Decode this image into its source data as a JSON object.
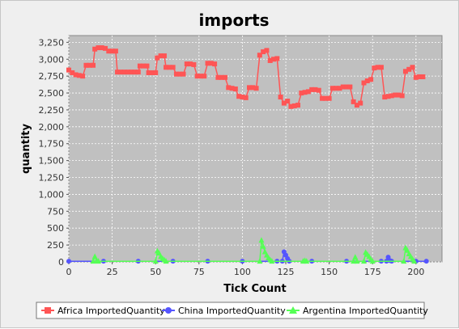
{
  "chart_data": {
    "type": "line",
    "title": "imports",
    "xlabel": "Tick Count",
    "ylabel": "quantity",
    "xlim": [
      0,
      215
    ],
    "ylim": [
      0,
      3350
    ],
    "xticks": [
      0,
      25,
      50,
      75,
      100,
      125,
      150,
      175,
      200
    ],
    "yticks": [
      0,
      250,
      500,
      750,
      1000,
      1250,
      1500,
      1750,
      2000,
      2250,
      2500,
      2750,
      3000,
      3250
    ],
    "grid": true,
    "legend_position": "bottom",
    "background": "#c0c0c0",
    "series": [
      {
        "name": "Africa ImportedQuantity",
        "color": "#ff5555",
        "marker": "square",
        "points": [
          [
            0,
            2840
          ],
          [
            2,
            2800
          ],
          [
            4,
            2770
          ],
          [
            6,
            2760
          ],
          [
            8,
            2750
          ],
          [
            10,
            2910
          ],
          [
            12,
            2910
          ],
          [
            14,
            2910
          ],
          [
            15,
            3150
          ],
          [
            17,
            3170
          ],
          [
            19,
            3170
          ],
          [
            21,
            3160
          ],
          [
            23,
            3120
          ],
          [
            25,
            3120
          ],
          [
            27,
            3120
          ],
          [
            28,
            2810
          ],
          [
            30,
            2810
          ],
          [
            32,
            2810
          ],
          [
            34,
            2810
          ],
          [
            36,
            2810
          ],
          [
            38,
            2810
          ],
          [
            40,
            2810
          ],
          [
            41,
            2900
          ],
          [
            43,
            2900
          ],
          [
            45,
            2900
          ],
          [
            46,
            2800
          ],
          [
            48,
            2800
          ],
          [
            50,
            2800
          ],
          [
            51,
            3020
          ],
          [
            53,
            3050
          ],
          [
            55,
            3050
          ],
          [
            56,
            2880
          ],
          [
            58,
            2880
          ],
          [
            60,
            2880
          ],
          [
            62,
            2780
          ],
          [
            64,
            2780
          ],
          [
            66,
            2780
          ],
          [
            68,
            2930
          ],
          [
            70,
            2930
          ],
          [
            72,
            2920
          ],
          [
            74,
            2750
          ],
          [
            76,
            2750
          ],
          [
            78,
            2750
          ],
          [
            80,
            2940
          ],
          [
            82,
            2940
          ],
          [
            84,
            2930
          ],
          [
            86,
            2730
          ],
          [
            88,
            2730
          ],
          [
            90,
            2730
          ],
          [
            92,
            2580
          ],
          [
            94,
            2570
          ],
          [
            96,
            2560
          ],
          [
            98,
            2450
          ],
          [
            100,
            2440
          ],
          [
            102,
            2430
          ],
          [
            104,
            2580
          ],
          [
            106,
            2580
          ],
          [
            108,
            2570
          ],
          [
            110,
            3060
          ],
          [
            112,
            3110
          ],
          [
            114,
            3130
          ],
          [
            116,
            2980
          ],
          [
            118,
            3000
          ],
          [
            120,
            3010
          ],
          [
            122,
            2440
          ],
          [
            124,
            2350
          ],
          [
            126,
            2380
          ],
          [
            128,
            2300
          ],
          [
            130,
            2310
          ],
          [
            132,
            2320
          ],
          [
            134,
            2500
          ],
          [
            136,
            2510
          ],
          [
            138,
            2520
          ],
          [
            140,
            2550
          ],
          [
            142,
            2550
          ],
          [
            144,
            2540
          ],
          [
            146,
            2420
          ],
          [
            148,
            2420
          ],
          [
            150,
            2420
          ],
          [
            152,
            2570
          ],
          [
            154,
            2570
          ],
          [
            156,
            2570
          ],
          [
            158,
            2590
          ],
          [
            160,
            2590
          ],
          [
            162,
            2590
          ],
          [
            164,
            2370
          ],
          [
            166,
            2320
          ],
          [
            168,
            2350
          ],
          [
            170,
            2650
          ],
          [
            172,
            2680
          ],
          [
            174,
            2700
          ],
          [
            176,
            2870
          ],
          [
            178,
            2880
          ],
          [
            180,
            2880
          ],
          [
            182,
            2440
          ],
          [
            184,
            2450
          ],
          [
            186,
            2460
          ],
          [
            188,
            2470
          ],
          [
            190,
            2470
          ],
          [
            192,
            2460
          ],
          [
            194,
            2820
          ],
          [
            196,
            2850
          ],
          [
            198,
            2880
          ],
          [
            200,
            2730
          ],
          [
            202,
            2740
          ],
          [
            204,
            2740
          ]
        ]
      },
      {
        "name": "China ImportedQuantity",
        "color": "#5555ff",
        "marker": "circle",
        "points": [
          [
            0,
            10
          ],
          [
            20,
            10
          ],
          [
            40,
            10
          ],
          [
            60,
            10
          ],
          [
            80,
            10
          ],
          [
            100,
            10
          ],
          [
            120,
            10
          ],
          [
            123,
            10
          ],
          [
            124,
            150
          ],
          [
            125,
            100
          ],
          [
            126,
            50
          ],
          [
            127,
            10
          ],
          [
            140,
            10
          ],
          [
            160,
            10
          ],
          [
            180,
            10
          ],
          [
            183,
            10
          ],
          [
            184,
            70
          ],
          [
            185,
            20
          ],
          [
            186,
            10
          ],
          [
            200,
            10
          ],
          [
            206,
            10
          ]
        ]
      },
      {
        "name": "Argentina ImportedQuantity",
        "color": "#55ff55",
        "marker": "triangle",
        "points": [
          [
            14,
            10
          ],
          [
            15,
            80
          ],
          [
            16,
            20
          ],
          [
            17,
            10
          ],
          [
            50,
            10
          ],
          [
            51,
            160
          ],
          [
            52,
            130
          ],
          [
            53,
            80
          ],
          [
            54,
            50
          ],
          [
            55,
            30
          ],
          [
            56,
            10
          ],
          [
            110,
            10
          ],
          [
            111,
            320
          ],
          [
            112,
            230
          ],
          [
            113,
            150
          ],
          [
            114,
            100
          ],
          [
            115,
            60
          ],
          [
            116,
            30
          ],
          [
            117,
            10
          ],
          [
            135,
            10
          ],
          [
            136,
            20
          ],
          [
            137,
            10
          ],
          [
            164,
            10
          ],
          [
            165,
            70
          ],
          [
            166,
            10
          ],
          [
            170,
            10
          ],
          [
            171,
            140
          ],
          [
            172,
            110
          ],
          [
            173,
            80
          ],
          [
            174,
            40
          ],
          [
            175,
            10
          ],
          [
            193,
            10
          ],
          [
            194,
            210
          ],
          [
            195,
            170
          ],
          [
            196,
            120
          ],
          [
            197,
            80
          ],
          [
            198,
            40
          ],
          [
            199,
            10
          ]
        ]
      }
    ]
  }
}
